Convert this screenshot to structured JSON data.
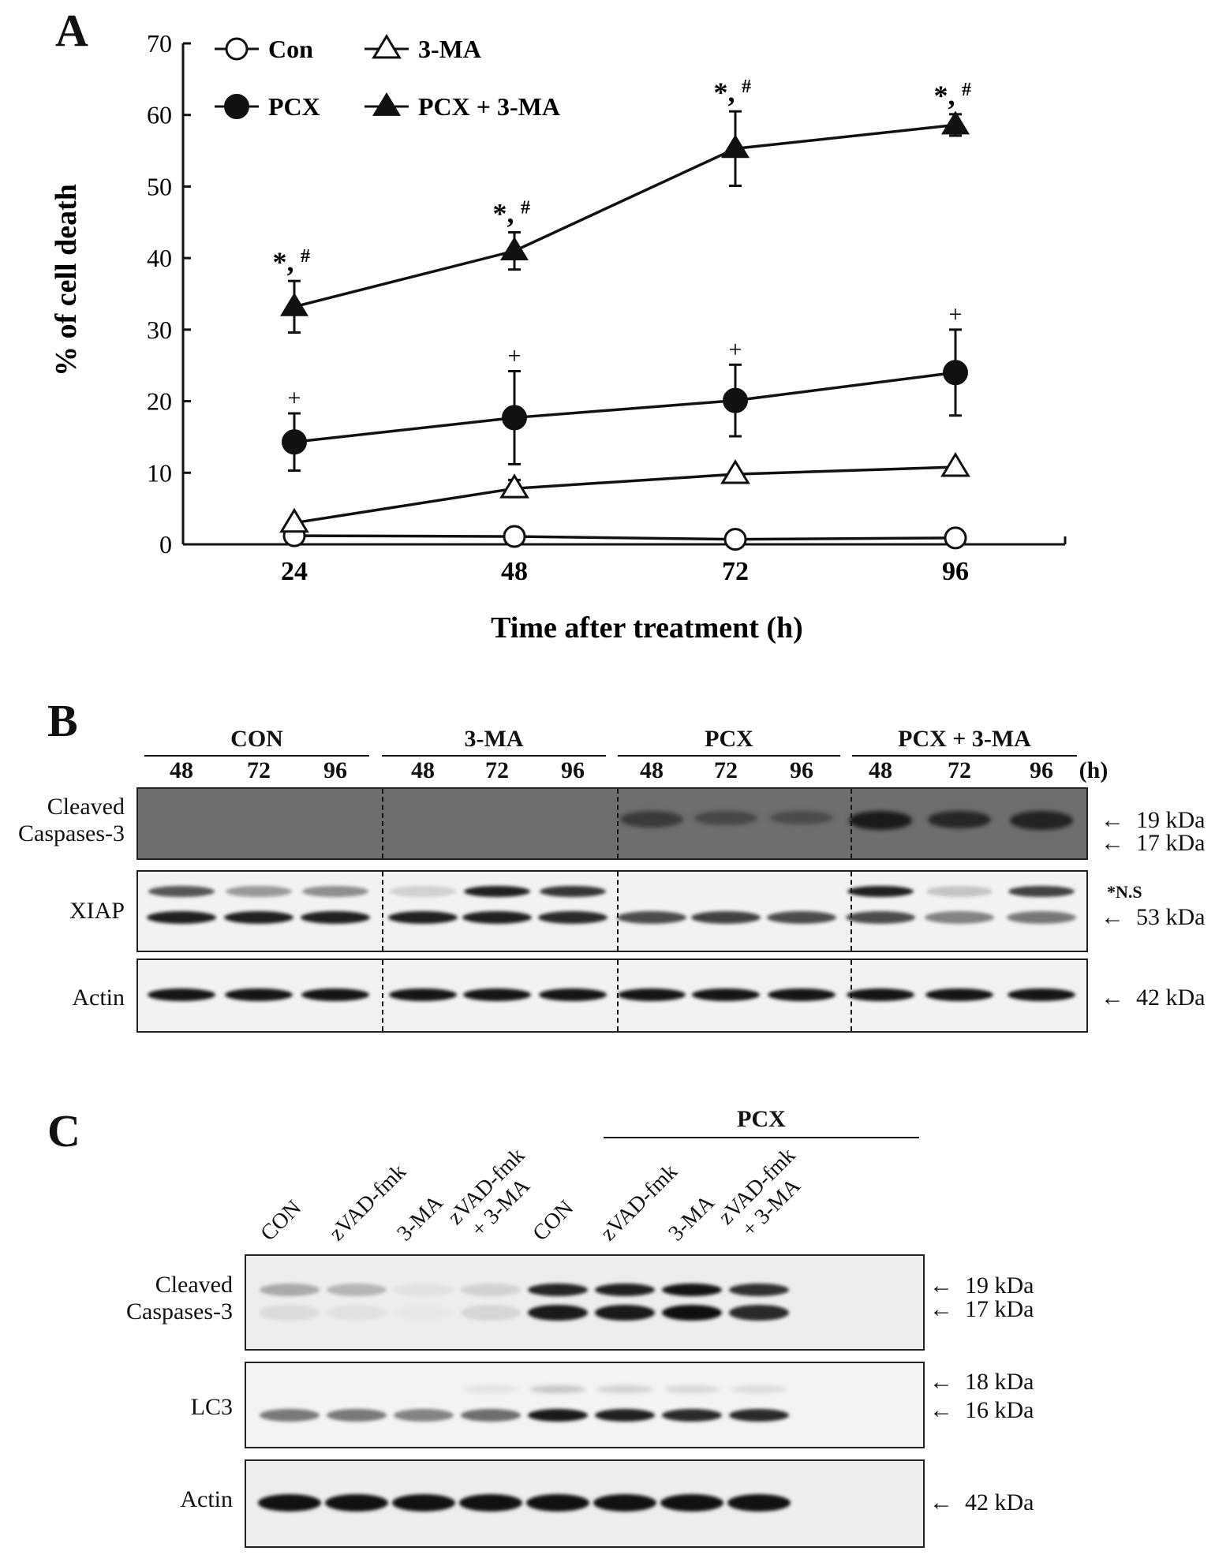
{
  "panels": {
    "a": "A",
    "b": "B",
    "c": "C"
  },
  "chart_data": {
    "type": "line",
    "x": [
      24,
      48,
      72,
      96
    ],
    "xlabel": "Time after treatment (h)",
    "ylabel": "% of cell death",
    "ylim": [
      0,
      70
    ],
    "yticks": [
      0,
      10,
      20,
      30,
      40,
      50,
      60,
      70
    ],
    "legend_position": "top-left",
    "series": [
      {
        "name": "Con",
        "marker": "circle-open",
        "values": [
          1.2,
          1.1,
          0.7,
          0.9
        ],
        "errors": [
          0,
          0,
          0,
          0
        ],
        "annotations": [
          "",
          "",
          "",
          ""
        ]
      },
      {
        "name": "3-MA",
        "marker": "triangle-open",
        "values": [
          3.0,
          7.8,
          9.8,
          10.8
        ],
        "errors": [
          0,
          1.2,
          0,
          0
        ],
        "annotations": [
          "",
          "",
          "",
          ""
        ]
      },
      {
        "name": "PCX",
        "marker": "circle-filled",
        "values": [
          14.3,
          17.7,
          20.1,
          24.0
        ],
        "errors": [
          4.0,
          6.5,
          5.0,
          6.0
        ],
        "annotations": [
          "+",
          "+",
          "+",
          "+"
        ]
      },
      {
        "name": "PCX + 3-MA",
        "marker": "triangle-filled",
        "values": [
          33.2,
          41.0,
          55.3,
          58.6
        ],
        "errors": [
          3.6,
          2.6,
          5.2,
          1.5
        ],
        "annotations": [
          "*,#",
          "*,#",
          "*,#",
          "*,#"
        ]
      }
    ]
  },
  "panel_b": {
    "groups": [
      "CON",
      "3-MA",
      "PCX",
      "PCX + 3-MA"
    ],
    "timepoints": [
      "48",
      "72",
      "96"
    ],
    "unit": "(h)",
    "rows": [
      {
        "label_line1": "Cleaved",
        "label_line2": "Caspases-3",
        "markers": [
          "19 kDa",
          "17 kDa"
        ]
      },
      {
        "label_line1": "XIAP",
        "label_line2": "",
        "markers": [
          "*N.S",
          "53 kDa"
        ]
      },
      {
        "label_line1": "Actin",
        "label_line2": "",
        "markers": [
          "42 kDa"
        ]
      }
    ]
  },
  "panel_c": {
    "group_label": "PCX",
    "lanes": [
      {
        "line1": "CON",
        "line2": ""
      },
      {
        "line1": "zVAD-fmk",
        "line2": ""
      },
      {
        "line1": "3-MA",
        "line2": ""
      },
      {
        "line1": "zVAD-fmk",
        "line2": "+ 3-MA"
      },
      {
        "line1": "CON",
        "line2": ""
      },
      {
        "line1": "zVAD-fmk",
        "line2": ""
      },
      {
        "line1": "3-MA",
        "line2": ""
      },
      {
        "line1": "zVAD-fmk",
        "line2": "+ 3-MA"
      }
    ],
    "rows": [
      {
        "label_line1": "Cleaved",
        "label_line2": "Caspases-3",
        "markers": [
          "19 kDa",
          "17 kDa"
        ]
      },
      {
        "label_line1": "LC3",
        "label_line2": "",
        "markers": [
          "18 kDa",
          "16 kDa"
        ]
      },
      {
        "label_line1": "Actin",
        "label_line2": "",
        "markers": [
          "42 kDa"
        ]
      }
    ]
  }
}
